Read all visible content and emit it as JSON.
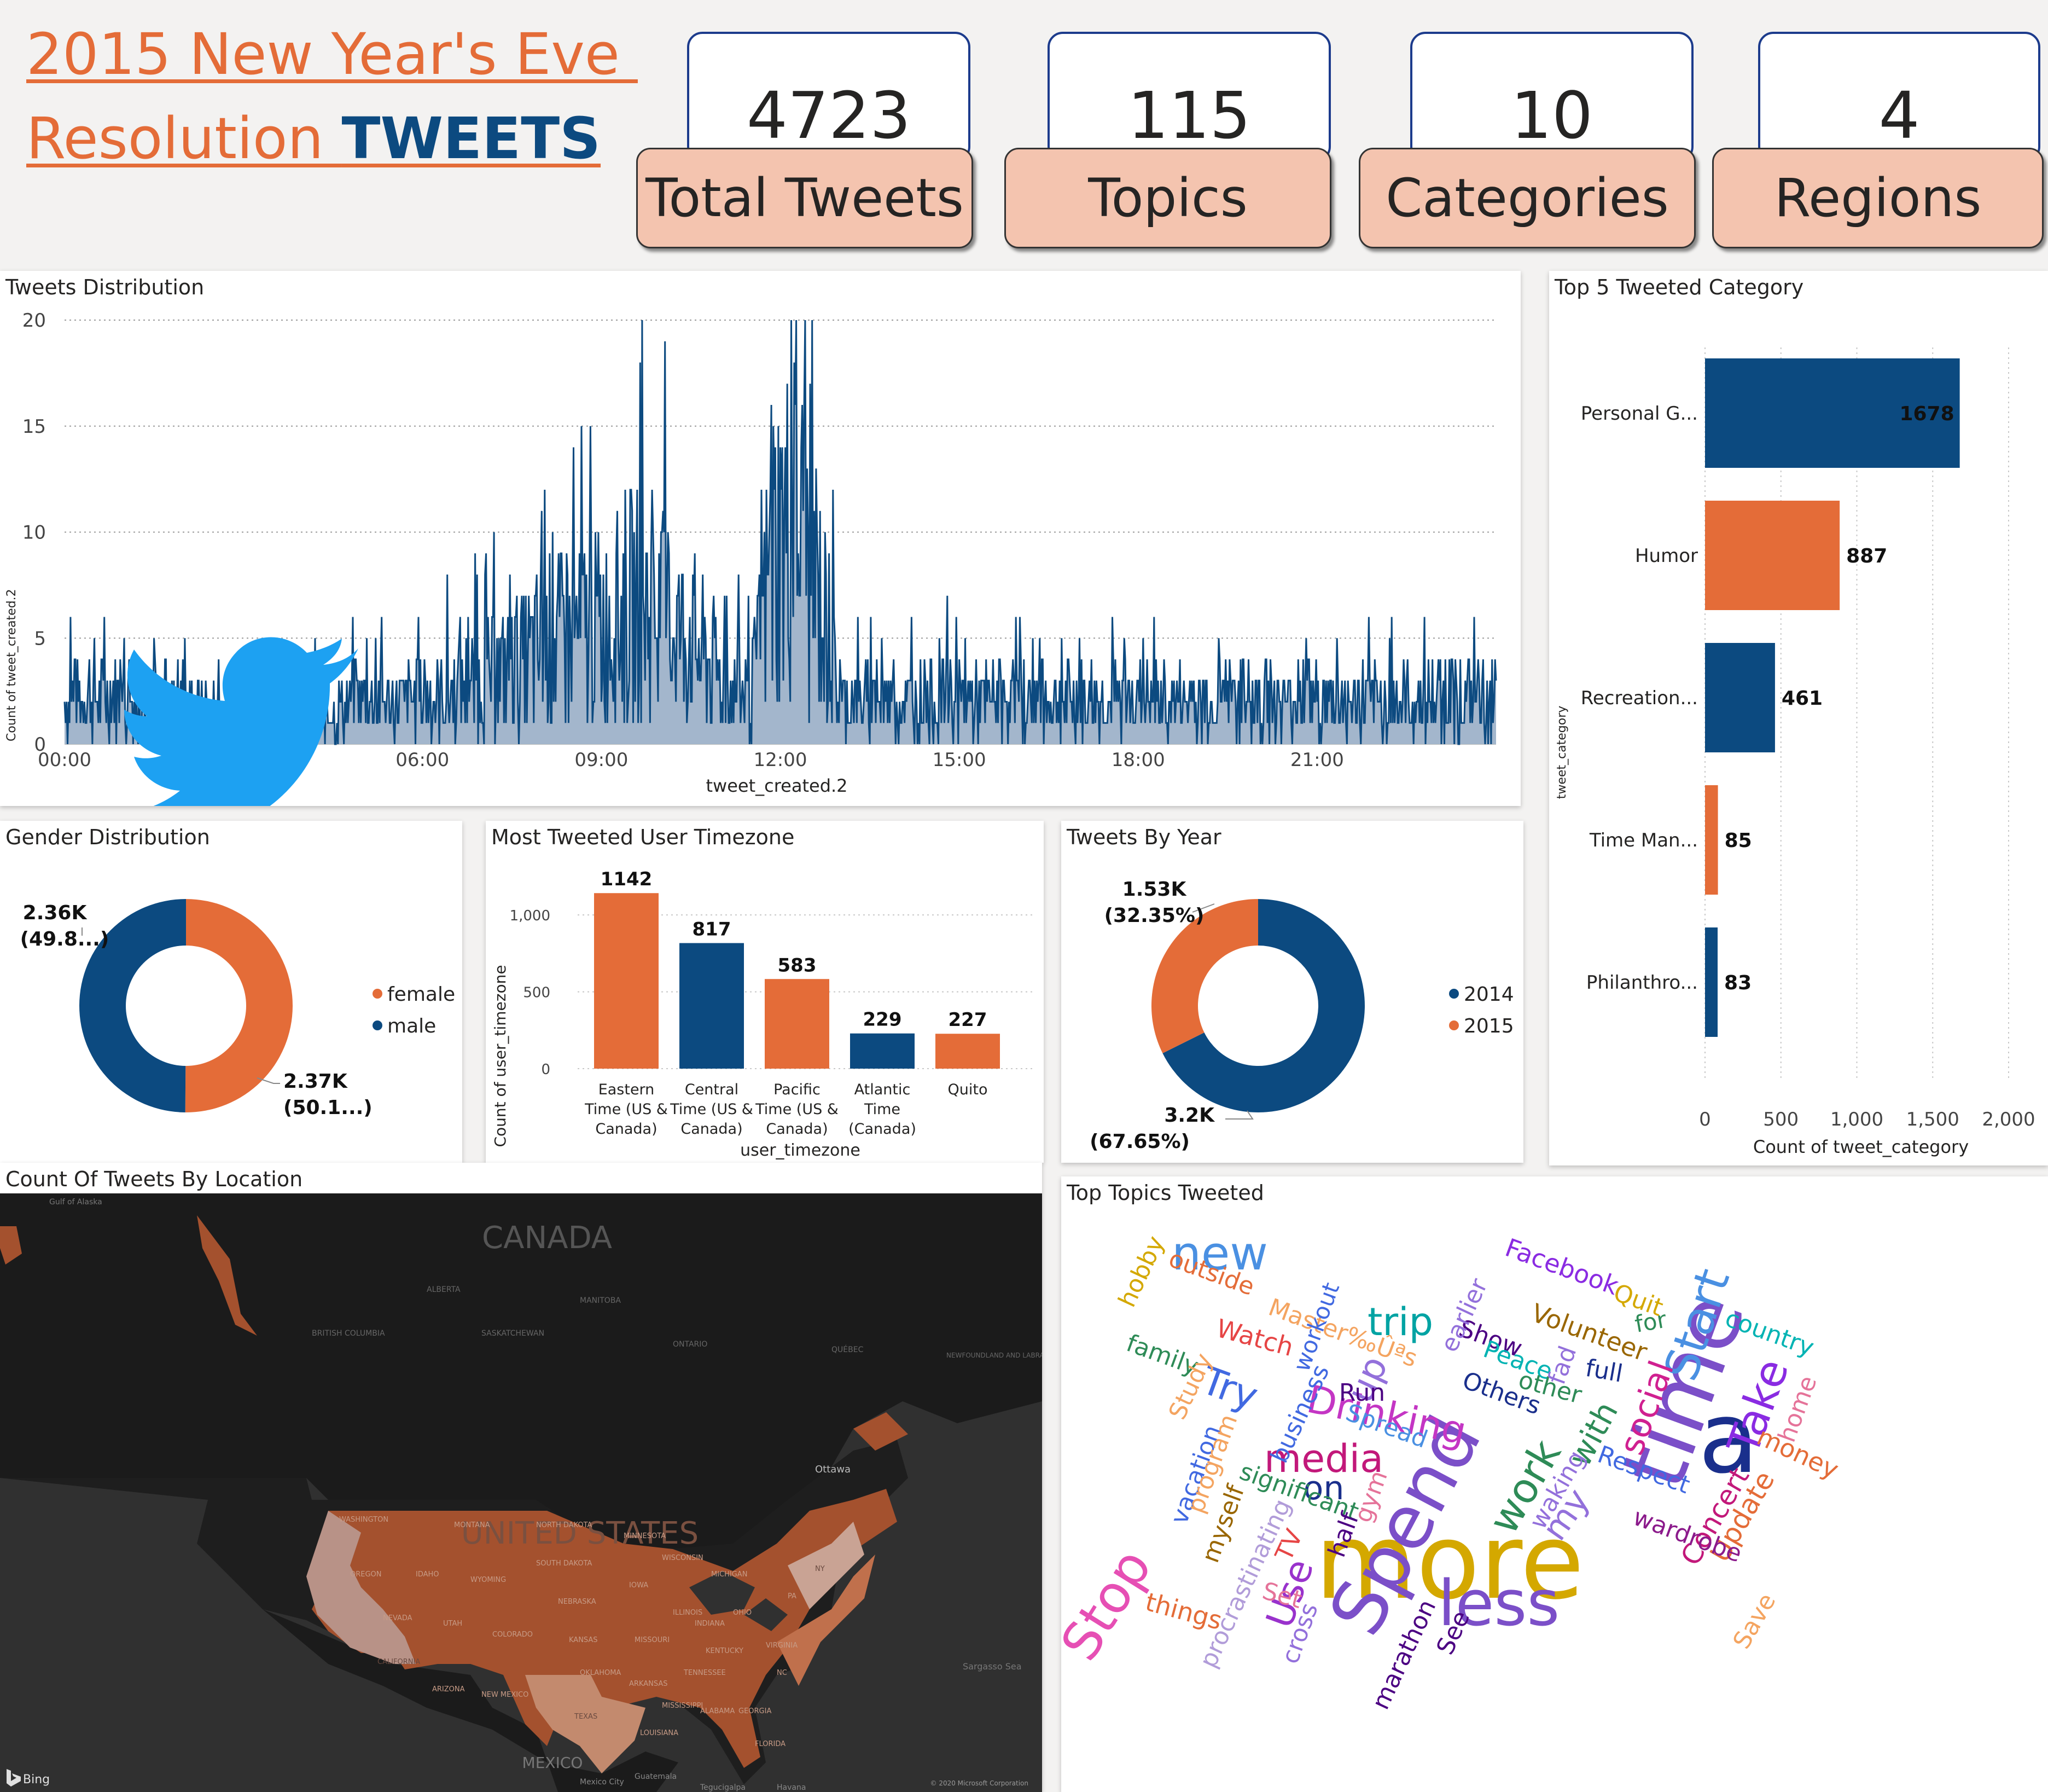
{
  "header": {
    "title_line1": "2015 New Year's Eve ",
    "title_line2_plain": "Resolution ",
    "title_line2_bold": "TWEETS"
  },
  "kpis": [
    {
      "value": "4723",
      "label": "Total Tweets"
    },
    {
      "value": "115",
      "label": "Topics"
    },
    {
      "value": "10",
      "label": "Categories"
    },
    {
      "value": "4",
      "label": "Regions"
    }
  ],
  "colors": {
    "blue": "#0C4A80",
    "orange": "#E46C38",
    "area_fill": "#A3B6CC",
    "kpi_label_bg": "#F4C4AF",
    "kpi_border": "#1C3B8C"
  },
  "tweets_distribution": {
    "title": "Tweets Distribution",
    "icon": "twitter-bird-icon",
    "chart_data": {
      "type": "area",
      "xlabel": "tweet_created.2",
      "ylabel": "Count of tweet_created.2",
      "x_ticks": [
        "00:00",
        "03:00",
        "06:00",
        "09:00",
        "12:00",
        "15:00",
        "18:00",
        "21:00"
      ],
      "y_ticks": [
        "0",
        "5",
        "10",
        "15",
        "20"
      ],
      "ylim": [
        0,
        20
      ],
      "x_range_hours": [
        0,
        24
      ],
      "grid": true,
      "series": [
        {
          "x_hours": [
            0,
            0.5,
            1,
            1.5,
            2,
            2.5,
            3,
            3.5,
            4,
            4.5,
            5,
            5.5,
            6,
            6.5,
            7,
            7.5,
            8,
            8.5,
            9,
            9.5,
            10,
            10.5,
            11,
            11.5,
            11.9,
            12.2,
            12.5,
            13,
            13.5,
            14,
            14.5,
            15,
            15.5,
            16,
            16.5,
            17,
            17.5,
            18,
            18.5,
            19,
            19.5,
            20,
            20.5,
            21,
            21.5,
            22,
            22.5,
            23,
            23.3,
            23.6,
            24
          ],
          "values": [
            2,
            2.5,
            2,
            2,
            1.8,
            1.5,
            1.5,
            1.5,
            1.5,
            1.8,
            2,
            2,
            2.2,
            2.5,
            3,
            3.5,
            4.5,
            5,
            5.5,
            6.5,
            6,
            5,
            3,
            2,
            9,
            10,
            9,
            2,
            2,
            2,
            2,
            2,
            2,
            2,
            2,
            2,
            2,
            2,
            2,
            2,
            2,
            2,
            2,
            2,
            2,
            2,
            2,
            2,
            2.5,
            2,
            2
          ]
        }
      ]
    }
  },
  "top5_category": {
    "title": "Top 5 Tweeted Category",
    "chart_data": {
      "type": "bar",
      "orientation": "horizontal",
      "categories": [
        "Personal G...",
        "Humor",
        "Recreation...",
        "Time Man...",
        "Philanthro..."
      ],
      "values": [
        1678,
        887,
        461,
        85,
        83
      ],
      "value_labels": [
        "1678",
        "887",
        "461",
        "85",
        "83"
      ],
      "bar_colors": [
        "#0C4A80",
        "#E46C38",
        "#0C4A80",
        "#E46C38",
        "#0C4A80"
      ],
      "xlabel": "Count of tweet_category",
      "ylabel": "tweet_category",
      "x_ticks": [
        "0",
        "500",
        "1,000",
        "1,500",
        "2,000"
      ],
      "xlim": [
        0,
        2000
      ]
    }
  },
  "gender": {
    "title": "Gender Distribution",
    "chart_data": {
      "type": "pie",
      "donut": true,
      "categories": [
        "female",
        "male"
      ],
      "values": [
        2370,
        2360
      ],
      "colors": [
        "#E46C38",
        "#0C4A80"
      ],
      "labels": [
        {
          "value": "2.37K",
          "pct": "(50.1...)"
        },
        {
          "value": "2.36K",
          "pct": "(49.8...)"
        }
      ],
      "legend": "right"
    }
  },
  "timezone": {
    "title": "Most Tweeted User Timezone",
    "chart_data": {
      "type": "bar",
      "categories": [
        [
          "Eastern",
          "Time (US &",
          "Canada)"
        ],
        [
          "Central",
          "Time (US &",
          "Canada)"
        ],
        [
          "Pacific",
          "Time (US &",
          "Canada)"
        ],
        [
          "Atlantic",
          "Time",
          "(Canada)"
        ],
        [
          "Quito"
        ]
      ],
      "values": [
        1142,
        817,
        583,
        229,
        227
      ],
      "value_labels": [
        "1142",
        "817",
        "583",
        "229",
        "227"
      ],
      "bar_colors": [
        "#E46C38",
        "#0C4A80",
        "#E46C38",
        "#0C4A80",
        "#E46C38"
      ],
      "xlabel": "user_timezone",
      "ylabel": "Count of user_timezone",
      "y_ticks": [
        "0",
        "500",
        "1,000"
      ],
      "ylim": [
        0,
        1150
      ]
    }
  },
  "by_year": {
    "title": "Tweets By Year",
    "chart_data": {
      "type": "pie",
      "donut": true,
      "categories": [
        "2014",
        "2015"
      ],
      "values": [
        3200,
        1530
      ],
      "colors": [
        "#0C4A80",
        "#E46C38"
      ],
      "labels": [
        {
          "value": "3.2K",
          "pct": "(67.65%)"
        },
        {
          "value": "1.53K",
          "pct": "(32.35%)"
        }
      ],
      "legend": "right"
    }
  },
  "map": {
    "title": "Count Of Tweets By Location",
    "labels": {
      "canada": "CANADA",
      "us": "UNITED STATES",
      "mexico": "MEXICO",
      "alberta": "ALBERTA",
      "bc": "BRITISH COLUMBIA",
      "sask": "SASKATCHEWAN",
      "manitoba": "MANITOBA",
      "ontario": "ONTARIO",
      "quebec": "QUÉBEC",
      "nfl": "NEWFOUNDLAND AND LABRADOR",
      "ottawa": "Ottawa",
      "gulf": "Gulf of Alaska",
      "sargasso": "Sargasso Sea",
      "washington": "WASHINGTON",
      "oregon": "OREGON",
      "california": "CALIFORNIA",
      "montana": "MONTANA",
      "idaho": "IDAHO",
      "wyoming": "WYOMING",
      "nevada": "NEVADA",
      "utah": "UTAH",
      "colorado": "COLORADO",
      "arizona": "ARIZONA",
      "newmexico": "NEW MEXICO",
      "texas": "TEXAS",
      "ndakota": "NORTH DAKOTA",
      "sdakota": "SOUTH DAKOTA",
      "nebraska": "NEBRASKA",
      "kansas": "KANSAS",
      "oklahoma": "OKLAHOMA",
      "minnesota": "MINNESOTA",
      "iowa": "IOWA",
      "missouri": "MISSOURI",
      "arkansas": "ARKANSAS",
      "louisiana": "LOUISIANA",
      "wisconsin": "WISCONSIN",
      "illinois": "ILLINOIS",
      "michigan": "MICHIGAN",
      "indiana": "INDIANA",
      "ohio": "OHIO",
      "kentucky": "KENTUCKY",
      "tennessee": "TENNESSEE",
      "mississippi": "MISSISSIPPI",
      "alabama": "ALABAMA",
      "georgia": "GEORGIA",
      "florida": "FLORIDA",
      "carolina": "NC",
      "virginia": "VIRGINIA",
      "pa": "PA",
      "ny": "NY",
      "havana": "Havana",
      "mexicocity": "Mexico City",
      "tegucigalpa": "Tegucigalpa",
      "guatemala": "Guatemala"
    },
    "bing": "Bing",
    "copyright": "© 2020 Microsoft Corporation"
  },
  "topics": {
    "title": "Top Topics Tweeted",
    "words": [
      {
        "t": "more",
        "x": 2650,
        "y": 2920,
        "s": 190,
        "c": "#D4A800",
        "r": 0
      },
      {
        "t": "time",
        "x": 3130,
        "y": 2560,
        "s": 160,
        "c": "#7B4FC8",
        "r": -70
      },
      {
        "t": "a",
        "x": 3160,
        "y": 2690,
        "s": 180,
        "c": "#1A2F8C",
        "r": 0
      },
      {
        "t": "Spend",
        "x": 2610,
        "y": 2810,
        "s": 135,
        "c": "#7B4FC8",
        "r": -62
      },
      {
        "t": "less",
        "x": 2740,
        "y": 2970,
        "s": 115,
        "c": "#7B4FC8",
        "r": 0
      },
      {
        "t": "Start",
        "x": 3130,
        "y": 2430,
        "s": 85,
        "c": "#4A90E2",
        "r": -72
      },
      {
        "t": "Take",
        "x": 3240,
        "y": 2580,
        "s": 80,
        "c": "#8A2BE2",
        "r": -70
      },
      {
        "t": "new",
        "x": 2230,
        "y": 2320,
        "s": 85,
        "c": "#4A90E2",
        "r": 0
      },
      {
        "t": "Drinking",
        "x": 2530,
        "y": 2610,
        "s": 70,
        "c": "#C436C4",
        "r": 12
      },
      {
        "t": "media",
        "x": 2420,
        "y": 2690,
        "s": 70,
        "c": "#C2187A",
        "r": 0
      },
      {
        "t": "work",
        "x": 2810,
        "y": 2730,
        "s": 75,
        "c": "#2E8B57",
        "r": -60
      },
      {
        "t": "social",
        "x": 3030,
        "y": 2580,
        "s": 62,
        "c": "#D02090",
        "r": -70
      },
      {
        "t": "Stop",
        "x": 2050,
        "y": 2950,
        "s": 95,
        "c": "#E64FB4",
        "r": -58
      },
      {
        "t": "with",
        "x": 2930,
        "y": 2630,
        "s": 58,
        "c": "#2E8B57",
        "r": -62
      },
      {
        "t": "my",
        "x": 2880,
        "y": 2780,
        "s": 62,
        "c": "#9370DB",
        "r": -55
      },
      {
        "t": "up",
        "x": 2520,
        "y": 2530,
        "s": 66,
        "c": "#9370DB",
        "r": -65
      },
      {
        "t": "trip",
        "x": 2560,
        "y": 2440,
        "s": 70,
        "c": "#00A3A3",
        "r": 0
      },
      {
        "t": "Try",
        "x": 2240,
        "y": 2560,
        "s": 70,
        "c": "#4169E1",
        "r": 20
      },
      {
        "t": "on",
        "x": 2420,
        "y": 2740,
        "s": 60,
        "c": "#1A2F8C",
        "r": 0
      },
      {
        "t": "Use",
        "x": 2380,
        "y": 2920,
        "s": 68,
        "c": "#9932CC",
        "r": -70
      },
      {
        "t": "Update",
        "x": 3200,
        "y": 2780,
        "s": 50,
        "c": "#E46C38",
        "r": -60
      },
      {
        "t": "Concert",
        "x": 3150,
        "y": 2780,
        "s": 50,
        "c": "#C2187A",
        "r": -60
      },
      {
        "t": "money",
        "x": 3280,
        "y": 2670,
        "s": 46,
        "c": "#E46C38",
        "r": 25
      },
      {
        "t": "home",
        "x": 3300,
        "y": 2580,
        "s": 44,
        "c": "#E57399",
        "r": -70
      },
      {
        "t": "country",
        "x": 3230,
        "y": 2450,
        "s": 44,
        "c": "#00B3B3",
        "r": 20
      },
      {
        "t": "Quit",
        "x": 2990,
        "y": 2390,
        "s": 44,
        "c": "#D4A800",
        "r": 20
      },
      {
        "t": "for",
        "x": 3020,
        "y": 2430,
        "s": 42,
        "c": "#2E8B57",
        "r": -10
      },
      {
        "t": "Facebook",
        "x": 2850,
        "y": 2330,
        "s": 46,
        "c": "#8A2BE2",
        "r": 20
      },
      {
        "t": "Volunteer",
        "x": 2900,
        "y": 2450,
        "s": 46,
        "c": "#996600",
        "r": 20
      },
      {
        "t": "Show",
        "x": 2720,
        "y": 2460,
        "s": 44,
        "c": "#4B0082",
        "r": 20
      },
      {
        "t": "Peace",
        "x": 2770,
        "y": 2500,
        "s": 44,
        "c": "#00B3B3",
        "r": 20
      },
      {
        "t": "earlier",
        "x": 2690,
        "y": 2410,
        "s": 44,
        "c": "#9370DB",
        "r": -65
      },
      {
        "t": "Master‰Ûªs",
        "x": 2450,
        "y": 2450,
        "s": 44,
        "c": "#F4A460",
        "r": 20
      },
      {
        "t": "workout",
        "x": 2420,
        "y": 2430,
        "s": 42,
        "c": "#4169E1",
        "r": -70
      },
      {
        "t": "Watch",
        "x": 2290,
        "y": 2460,
        "s": 46,
        "c": "#E64545",
        "r": 15
      },
      {
        "t": "family",
        "x": 2120,
        "y": 2490,
        "s": 44,
        "c": "#2E8B57",
        "r": 20
      },
      {
        "t": "Study",
        "x": 2190,
        "y": 2540,
        "s": 44,
        "c": "#F4A460",
        "r": -65
      },
      {
        "t": "outside",
        "x": 2210,
        "y": 2340,
        "s": 44,
        "c": "#E46C38",
        "r": 20
      },
      {
        "t": "hobby",
        "x": 2100,
        "y": 2330,
        "s": 44,
        "c": "#D4A800",
        "r": -65
      },
      {
        "t": "Run",
        "x": 2490,
        "y": 2560,
        "s": 44,
        "c": "#4B0082",
        "r": 0
      },
      {
        "t": "Spread",
        "x": 2530,
        "y": 2620,
        "s": 44,
        "c": "#4A90E2",
        "r": 20
      },
      {
        "t": "business",
        "x": 2390,
        "y": 2590,
        "s": 44,
        "c": "#4169E1",
        "r": -65
      },
      {
        "t": "Others",
        "x": 2740,
        "y": 2560,
        "s": 44,
        "c": "#1A2F8C",
        "r": 20
      },
      {
        "t": "other",
        "x": 2830,
        "y": 2550,
        "s": 44,
        "c": "#2E8B57",
        "r": 15
      },
      {
        "t": "fad",
        "x": 2870,
        "y": 2500,
        "s": 44,
        "c": "#9370DB",
        "r": -70
      },
      {
        "t": "full",
        "x": 2930,
        "y": 2520,
        "s": 44,
        "c": "#1A2F8C",
        "r": 10
      },
      {
        "t": "Respect",
        "x": 3000,
        "y": 2700,
        "s": 44,
        "c": "#4169E1",
        "r": 20
      },
      {
        "t": "waking",
        "x": 2860,
        "y": 2730,
        "s": 44,
        "c": "#9370DB",
        "r": -60
      },
      {
        "t": "wardrobe",
        "x": 3080,
        "y": 2820,
        "s": 44,
        "c": "#8B1A8B",
        "r": 20
      },
      {
        "t": "Save",
        "x": 3220,
        "y": 2970,
        "s": 44,
        "c": "#F4A460",
        "r": -60
      },
      {
        "t": "vacation",
        "x": 2200,
        "y": 2700,
        "s": 44,
        "c": "#4169E1",
        "r": -70
      },
      {
        "t": "program",
        "x": 2230,
        "y": 2680,
        "s": 44,
        "c": "#F4A460",
        "r": -70
      },
      {
        "t": "significant",
        "x": 2370,
        "y": 2740,
        "s": 44,
        "c": "#2E8B57",
        "r": 20
      },
      {
        "t": "gym",
        "x": 2520,
        "y": 2740,
        "s": 44,
        "c": "#E57399",
        "r": -70
      },
      {
        "t": "myself",
        "x": 2250,
        "y": 2790,
        "s": 44,
        "c": "#996600",
        "r": -70
      },
      {
        "t": "TV",
        "x": 2370,
        "y": 2830,
        "s": 44,
        "c": "#E64545",
        "r": -65
      },
      {
        "t": "half",
        "x": 2470,
        "y": 2810,
        "s": 44,
        "c": "#4B0082",
        "r": -70
      },
      {
        "t": "procrastinating",
        "x": 2290,
        "y": 2900,
        "s": 44,
        "c": "#B19CD9",
        "r": -65
      },
      {
        "t": "Set",
        "x": 2340,
        "y": 2930,
        "s": 44,
        "c": "#E57399",
        "r": 15
      },
      {
        "t": "things",
        "x": 2160,
        "y": 2960,
        "s": 46,
        "c": "#E46C38",
        "r": 15
      },
      {
        "t": "cross",
        "x": 2390,
        "y": 2990,
        "s": 44,
        "c": "#9370DB",
        "r": -70
      },
      {
        "t": "marathon",
        "x": 2580,
        "y": 3030,
        "s": 44,
        "c": "#4B0082",
        "r": -65
      },
      {
        "t": "See",
        "x": 2670,
        "y": 2990,
        "s": 44,
        "c": "#4B0082",
        "r": -65
      }
    ]
  }
}
